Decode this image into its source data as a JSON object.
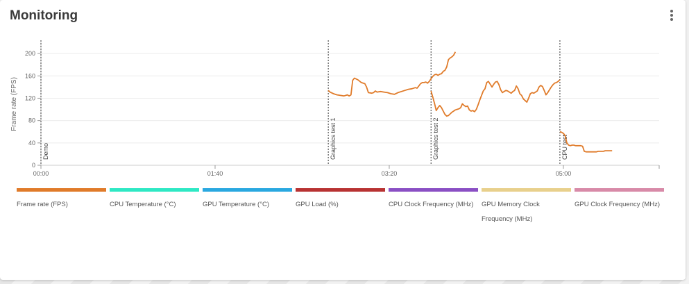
{
  "card": {
    "title": "Monitoring"
  },
  "chart_data": {
    "type": "line",
    "ylabel": "Frame rate (FPS)",
    "xlabel": "",
    "x_unit": "seconds",
    "xlim": [
      0,
      355
    ],
    "ylim": [
      0,
      220
    ],
    "x_ticks": [
      {
        "value": 0,
        "label": "00:00"
      },
      {
        "value": 100,
        "label": "01:40"
      },
      {
        "value": 200,
        "label": "03:20"
      },
      {
        "value": 300,
        "label": "05:00"
      }
    ],
    "y_ticks": [
      0,
      40,
      80,
      120,
      160,
      200
    ],
    "grid": true,
    "markers": [
      {
        "x": 0,
        "label": "Demo"
      },
      {
        "x": 165,
        "label": "Graphics test 1"
      },
      {
        "x": 224,
        "label": "Graphics test 2"
      },
      {
        "x": 298,
        "label": "CPU test"
      }
    ],
    "series": [
      {
        "name": "Frame rate (FPS)",
        "color": "#e07b2a",
        "segments": [
          [
            [
              165,
              134
            ],
            [
              166,
              131
            ],
            [
              168,
              128
            ],
            [
              170,
              126
            ],
            [
              172,
              125
            ],
            [
              174,
              124
            ],
            [
              176,
              126
            ],
            [
              177,
              124
            ],
            [
              178,
              126
            ],
            [
              179,
              152
            ],
            [
              180,
              156
            ],
            [
              182,
              153
            ],
            [
              184,
              148
            ],
            [
              186,
              146
            ],
            [
              187,
              140
            ],
            [
              188,
              130
            ],
            [
              190,
              129
            ],
            [
              191,
              130
            ],
            [
              192,
              133
            ],
            [
              193,
              131
            ],
            [
              195,
              132
            ],
            [
              197,
              131
            ],
            [
              199,
              130
            ],
            [
              201,
              128
            ],
            [
              203,
              127
            ],
            [
              205,
              130
            ],
            [
              207,
              132
            ],
            [
              209,
              134
            ],
            [
              211,
              136
            ],
            [
              213,
              137
            ],
            [
              215,
              139
            ],
            [
              216,
              138
            ],
            [
              217,
              142
            ],
            [
              218,
              146
            ],
            [
              219,
              148
            ],
            [
              220,
              148
            ],
            [
              221,
              149
            ],
            [
              222,
              147
            ],
            [
              223,
              150
            ],
            [
              224,
              155
            ],
            [
              225,
              159
            ],
            [
              226,
              162
            ],
            [
              227,
              163
            ],
            [
              228,
              161
            ],
            [
              229,
              163
            ],
            [
              230,
              164
            ],
            [
              231,
              168
            ],
            [
              232,
              170
            ],
            [
              233,
              176
            ],
            [
              234,
              189
            ],
            [
              235,
              192
            ],
            [
              236,
              194
            ],
            [
              237,
              197
            ],
            [
              238,
              203
            ]
          ],
          [
            [
              224,
              133
            ],
            [
              225,
              122
            ],
            [
              226,
              111
            ],
            [
              227,
              98
            ],
            [
              228,
              103
            ],
            [
              229,
              107
            ],
            [
              230,
              103
            ],
            [
              231,
              97
            ],
            [
              232,
              91
            ],
            [
              233,
              88
            ],
            [
              234,
              89
            ],
            [
              235,
              92
            ],
            [
              236,
              95
            ],
            [
              237,
              97
            ],
            [
              238,
              99
            ],
            [
              239,
              100
            ],
            [
              240,
              101
            ],
            [
              241,
              103
            ],
            [
              242,
              110
            ],
            [
              243,
              107
            ],
            [
              244,
              105
            ],
            [
              245,
              106
            ],
            [
              246,
              99
            ],
            [
              247,
              97
            ],
            [
              248,
              98
            ],
            [
              249,
              96
            ],
            [
              250,
              100
            ],
            [
              251,
              108
            ],
            [
              252,
              117
            ],
            [
              253,
              125
            ],
            [
              254,
              133
            ],
            [
              255,
              137
            ],
            [
              256,
              148
            ],
            [
              257,
              150
            ],
            [
              258,
              145
            ],
            [
              259,
              140
            ],
            [
              260,
              145
            ],
            [
              261,
              149
            ],
            [
              262,
              150
            ],
            [
              263,
              144
            ],
            [
              264,
              135
            ],
            [
              265,
              130
            ],
            [
              266,
              132
            ],
            [
              267,
              134
            ],
            [
              268,
              133
            ],
            [
              269,
              131
            ],
            [
              270,
              129
            ],
            [
              271,
              132
            ],
            [
              272,
              134
            ],
            [
              273,
              142
            ],
            [
              274,
              137
            ],
            [
              275,
              128
            ],
            [
              276,
              125
            ],
            [
              277,
              119
            ],
            [
              278,
              116
            ],
            [
              279,
              113
            ],
            [
              280,
              120
            ],
            [
              281,
              128
            ],
            [
              282,
              130
            ],
            [
              283,
              129
            ],
            [
              284,
              131
            ],
            [
              285,
              133
            ],
            [
              286,
              140
            ],
            [
              287,
              143
            ],
            [
              288,
              141
            ],
            [
              289,
              134
            ],
            [
              290,
              126
            ],
            [
              291,
              130
            ],
            [
              292,
              135
            ],
            [
              293,
              140
            ],
            [
              294,
              144
            ],
            [
              295,
              147
            ],
            [
              296,
              148
            ],
            [
              297,
              150
            ],
            [
              298,
              153
            ]
          ],
          [
            [
              298,
              60
            ],
            [
              299,
              59
            ],
            [
              300,
              57
            ],
            [
              301,
              53
            ],
            [
              302,
              40
            ],
            [
              303,
              36
            ],
            [
              304,
              35
            ],
            [
              305,
              36
            ],
            [
              306,
              36
            ],
            [
              307,
              35
            ],
            [
              308,
              35
            ],
            [
              309,
              35
            ],
            [
              310,
              35
            ],
            [
              311,
              34
            ],
            [
              312,
              25
            ],
            [
              313,
              24
            ],
            [
              314,
              24
            ],
            [
              315,
              24
            ],
            [
              316,
              24
            ],
            [
              317,
              24
            ],
            [
              318,
              24
            ],
            [
              319,
              24
            ],
            [
              320,
              25
            ],
            [
              321,
              25
            ],
            [
              322,
              25
            ],
            [
              323,
              25
            ],
            [
              324,
              26
            ],
            [
              325,
              26
            ],
            [
              326,
              26
            ],
            [
              327,
              26
            ],
            [
              328,
              26
            ]
          ]
        ]
      }
    ]
  },
  "legend": {
    "items": [
      {
        "label": "Frame rate (FPS)",
        "color": "#e07b2a"
      },
      {
        "label": "CPU Temperature (°C)",
        "color": "#2ee8c4"
      },
      {
        "label": "GPU Temperature (°C)",
        "color": "#2aa8e0"
      },
      {
        "label": "GPU Load (%)",
        "color": "#b83232"
      },
      {
        "label": "CPU Clock Frequency (MHz)",
        "color": "#8a4fc4"
      },
      {
        "label": "GPU Memory Clock Frequency (MHz)",
        "color": "#e8d08c"
      },
      {
        "label": "GPU Clock Frequency (MHz)",
        "color": "#d88aa8"
      }
    ]
  }
}
